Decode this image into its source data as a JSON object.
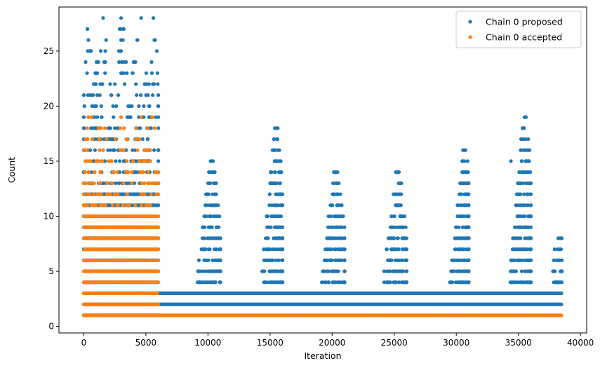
{
  "chart_data": {
    "type": "scatter",
    "title": "",
    "xlabel": "Iteration",
    "ylabel": "Count",
    "xlim": [
      -2000,
      40500
    ],
    "ylim": [
      -0.6,
      29
    ],
    "xticks": [
      0,
      5000,
      10000,
      15000,
      20000,
      25000,
      30000,
      35000,
      40000
    ],
    "yticks": [
      0,
      5,
      10,
      15,
      20,
      25
    ],
    "grid": false,
    "legend_position": "top-right",
    "series": [
      {
        "name": "Chain 0 proposed",
        "color": "#1f77b4",
        "phases": [
          {
            "start": 0,
            "end": 6000,
            "floor": 1,
            "dense_max": 12,
            "peak": 28,
            "cluster_centers": [
              500,
              1500,
              3000,
              4500,
              5500
            ]
          },
          {
            "start": 6000,
            "end": 11000,
            "floor": 2,
            "dense_max": 3,
            "peak": 15,
            "cluster_centers": [
              10300
            ]
          },
          {
            "start": 11000,
            "end": 16000,
            "floor": 2,
            "dense_max": 3,
            "peak": 18,
            "cluster_centers": [
              15500
            ]
          },
          {
            "start": 16000,
            "end": 21000,
            "floor": 2,
            "dense_max": 3,
            "peak": 14,
            "cluster_centers": [
              20300
            ]
          },
          {
            "start": 21000,
            "end": 26000,
            "floor": 2,
            "dense_max": 3,
            "peak": 14,
            "cluster_centers": [
              25300
            ]
          },
          {
            "start": 26000,
            "end": 31000,
            "floor": 2,
            "dense_max": 3,
            "peak": 16,
            "cluster_centers": [
              30700
            ]
          },
          {
            "start": 31000,
            "end": 36000,
            "floor": 2,
            "dense_max": 3,
            "peak": 19,
            "cluster_centers": [
              35500
            ]
          },
          {
            "start": 36000,
            "end": 38500,
            "floor": 2,
            "dense_max": 3,
            "peak": 8,
            "cluster_centers": [
              38200
            ]
          }
        ],
        "notable_points": [
          [
            3000,
            28
          ],
          [
            3000,
            26
          ],
          [
            3000,
            25
          ],
          [
            3000,
            23
          ],
          [
            1500,
            22
          ],
          [
            5000,
            22
          ],
          [
            15500,
            18
          ],
          [
            35500,
            19
          ],
          [
            35900,
            16
          ],
          [
            30700,
            16
          ],
          [
            10300,
            15
          ],
          [
            34400,
            15
          ],
          [
            20300,
            14
          ],
          [
            25300,
            14
          ],
          [
            38500,
            8
          ]
        ]
      },
      {
        "name": "Chain 0 accepted",
        "color": "#ff7f0e",
        "phases": [
          {
            "start": 0,
            "end": 6000,
            "floor": 1,
            "dense_max": 10,
            "peak": 19,
            "cluster_centers": [
              500,
              1500,
              3000,
              4500,
              5500
            ]
          },
          {
            "start": 6000,
            "end": 38500,
            "floor": 1,
            "dense_max": 1,
            "peak": 1,
            "cluster_centers": []
          }
        ],
        "notable_points": [
          [
            3000,
            19
          ],
          [
            5700,
            18
          ],
          [
            3200,
            16
          ],
          [
            2000,
            15
          ],
          [
            5000,
            15
          ]
        ]
      }
    ]
  }
}
